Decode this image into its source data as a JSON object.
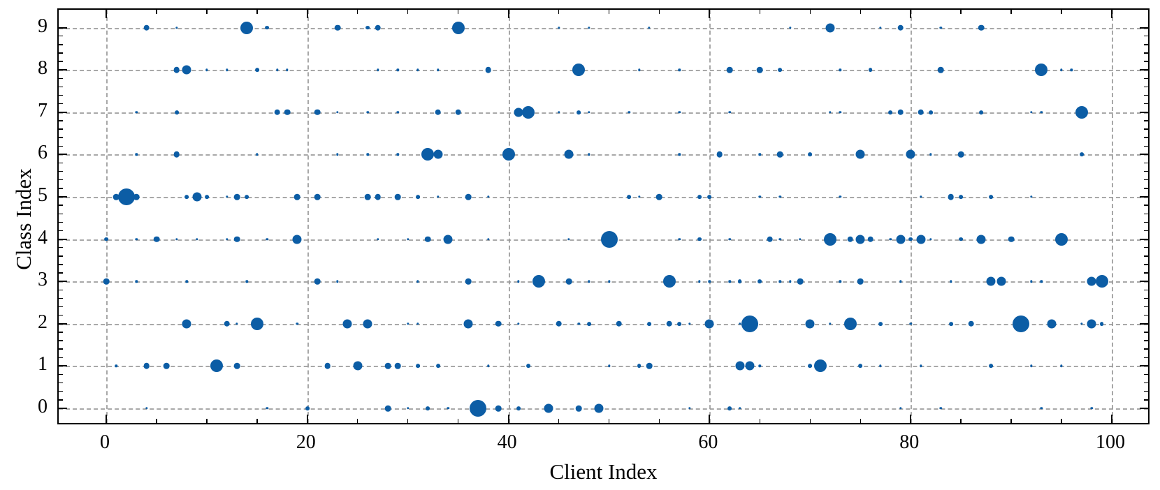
{
  "figure": {
    "xaxis_title": "Client Index",
    "yaxis_title": "Class Index"
  },
  "chart_data": {
    "type": "scatter",
    "subtype": "bubble",
    "title": "",
    "xlabel": "Client Index",
    "ylabel": "Class Index",
    "xlim": [
      -4.7,
      104
    ],
    "ylim": [
      -0.45,
      9.45
    ],
    "x_ticks": [
      0,
      20,
      40,
      60,
      80,
      100
    ],
    "y_ticks": [
      0,
      1,
      2,
      3,
      4,
      5,
      6,
      7,
      8,
      9
    ],
    "x_minor_step": 5,
    "y_minor_step": 0.2,
    "grid": "both, dashed gray",
    "legend": "none",
    "dot_color": "#0C5DA5",
    "grid_color": "#9a9a9a",
    "size_classes": {
      "1": "tiny",
      "2": "small",
      "3": "medium",
      "4": "large",
      "5": "xlarge",
      "6": "xxlarge"
    },
    "points_note": "each point = [client_index, class_index, size_class]; size encodes relative sample count",
    "points": [
      [
        4,
        9,
        3
      ],
      [
        7,
        9,
        1
      ],
      [
        14,
        9,
        5
      ],
      [
        16,
        9,
        2
      ],
      [
        23,
        9,
        3
      ],
      [
        26,
        9,
        2
      ],
      [
        27,
        9,
        3
      ],
      [
        35,
        9,
        5
      ],
      [
        45,
        9,
        1
      ],
      [
        48,
        9,
        1
      ],
      [
        54,
        9,
        1
      ],
      [
        68,
        9,
        1
      ],
      [
        72,
        9,
        4
      ],
      [
        77,
        9,
        1
      ],
      [
        79,
        9,
        3
      ],
      [
        83,
        9,
        1
      ],
      [
        87,
        9,
        3
      ],
      [
        7,
        8,
        3
      ],
      [
        8,
        8,
        4
      ],
      [
        10,
        8,
        1
      ],
      [
        12,
        8,
        1
      ],
      [
        15,
        8,
        2
      ],
      [
        17,
        8,
        1
      ],
      [
        18,
        8,
        1
      ],
      [
        27,
        8,
        1
      ],
      [
        29,
        8,
        1
      ],
      [
        31,
        8,
        1
      ],
      [
        33,
        8,
        1
      ],
      [
        38,
        8,
        3
      ],
      [
        47,
        8,
        5
      ],
      [
        53,
        8,
        1
      ],
      [
        57,
        8,
        1
      ],
      [
        62,
        8,
        3
      ],
      [
        65,
        8,
        3
      ],
      [
        67,
        8,
        2
      ],
      [
        73,
        8,
        1
      ],
      [
        76,
        8,
        2
      ],
      [
        83,
        8,
        3
      ],
      [
        93,
        8,
        5
      ],
      [
        95,
        8,
        1
      ],
      [
        96,
        8,
        1
      ],
      [
        3,
        7,
        1
      ],
      [
        7,
        7,
        2
      ],
      [
        17,
        7,
        3
      ],
      [
        18,
        7,
        3
      ],
      [
        21,
        7,
        3
      ],
      [
        23,
        7,
        1
      ],
      [
        26,
        7,
        1
      ],
      [
        29,
        7,
        1
      ],
      [
        33,
        7,
        3
      ],
      [
        35,
        7,
        3
      ],
      [
        41,
        7,
        4
      ],
      [
        42,
        7,
        5
      ],
      [
        45,
        7,
        1
      ],
      [
        47,
        7,
        2
      ],
      [
        48,
        7,
        1
      ],
      [
        52,
        7,
        1
      ],
      [
        57,
        7,
        1
      ],
      [
        62,
        7,
        1
      ],
      [
        72,
        7,
        1
      ],
      [
        73,
        7,
        1
      ],
      [
        78,
        7,
        2
      ],
      [
        79,
        7,
        3
      ],
      [
        81,
        7,
        3
      ],
      [
        82,
        7,
        2
      ],
      [
        87,
        7,
        2
      ],
      [
        92,
        7,
        1
      ],
      [
        93,
        7,
        1
      ],
      [
        97,
        7,
        5
      ],
      [
        3,
        6,
        1
      ],
      [
        7,
        6,
        3
      ],
      [
        15,
        6,
        1
      ],
      [
        23,
        6,
        1
      ],
      [
        26,
        6,
        1
      ],
      [
        29,
        6,
        1
      ],
      [
        32,
        6,
        5
      ],
      [
        33,
        6,
        4
      ],
      [
        40,
        6,
        5
      ],
      [
        46,
        6,
        4
      ],
      [
        48,
        6,
        1
      ],
      [
        57,
        6,
        1
      ],
      [
        61,
        6,
        3
      ],
      [
        65,
        6,
        1
      ],
      [
        67,
        6,
        3
      ],
      [
        70,
        6,
        2
      ],
      [
        75,
        6,
        4
      ],
      [
        80,
        6,
        4
      ],
      [
        82,
        6,
        1
      ],
      [
        85,
        6,
        3
      ],
      [
        97,
        6,
        2
      ],
      [
        1,
        5,
        3
      ],
      [
        2,
        5,
        6
      ],
      [
        3,
        5,
        3
      ],
      [
        8,
        5,
        2
      ],
      [
        9,
        5,
        4
      ],
      [
        10,
        5,
        2
      ],
      [
        12,
        5,
        1
      ],
      [
        13,
        5,
        3
      ],
      [
        14,
        5,
        2
      ],
      [
        19,
        5,
        3
      ],
      [
        21,
        5,
        3
      ],
      [
        26,
        5,
        3
      ],
      [
        27,
        5,
        3
      ],
      [
        29,
        5,
        3
      ],
      [
        31,
        5,
        2
      ],
      [
        33,
        5,
        1
      ],
      [
        36,
        5,
        3
      ],
      [
        38,
        5,
        1
      ],
      [
        52,
        5,
        2
      ],
      [
        53,
        5,
        1
      ],
      [
        55,
        5,
        3
      ],
      [
        59,
        5,
        2
      ],
      [
        60,
        5,
        2
      ],
      [
        65,
        5,
        1
      ],
      [
        67,
        5,
        1
      ],
      [
        73,
        5,
        1
      ],
      [
        81,
        5,
        1
      ],
      [
        84,
        5,
        3
      ],
      [
        85,
        5,
        2
      ],
      [
        88,
        5,
        2
      ],
      [
        92,
        5,
        1
      ],
      [
        0,
        4,
        2
      ],
      [
        3,
        4,
        1
      ],
      [
        5,
        4,
        3
      ],
      [
        7,
        4,
        1
      ],
      [
        9,
        4,
        1
      ],
      [
        12,
        4,
        1
      ],
      [
        13,
        4,
        3
      ],
      [
        16,
        4,
        1
      ],
      [
        19,
        4,
        4
      ],
      [
        27,
        4,
        1
      ],
      [
        30,
        4,
        1
      ],
      [
        32,
        4,
        3
      ],
      [
        34,
        4,
        4
      ],
      [
        38,
        4,
        1
      ],
      [
        46,
        4,
        1
      ],
      [
        50,
        4,
        6
      ],
      [
        57,
        4,
        1
      ],
      [
        59,
        4,
        2
      ],
      [
        62,
        4,
        1
      ],
      [
        66,
        4,
        3
      ],
      [
        67,
        4,
        1
      ],
      [
        69,
        4,
        1
      ],
      [
        72,
        4,
        5
      ],
      [
        74,
        4,
        3
      ],
      [
        75,
        4,
        4
      ],
      [
        76,
        4,
        3
      ],
      [
        78,
        4,
        1
      ],
      [
        79,
        4,
        4
      ],
      [
        80,
        4,
        2
      ],
      [
        81,
        4,
        4
      ],
      [
        82,
        4,
        1
      ],
      [
        85,
        4,
        2
      ],
      [
        87,
        4,
        4
      ],
      [
        90,
        4,
        3
      ],
      [
        95,
        4,
        5
      ],
      [
        0,
        3,
        3
      ],
      [
        3,
        3,
        1
      ],
      [
        8,
        3,
        1
      ],
      [
        14,
        3,
        1
      ],
      [
        21,
        3,
        3
      ],
      [
        23,
        3,
        1
      ],
      [
        31,
        3,
        1
      ],
      [
        36,
        3,
        3
      ],
      [
        41,
        3,
        1
      ],
      [
        43,
        3,
        5
      ],
      [
        46,
        3,
        3
      ],
      [
        48,
        3,
        1
      ],
      [
        50,
        3,
        1
      ],
      [
        56,
        3,
        5
      ],
      [
        59,
        3,
        1
      ],
      [
        60,
        3,
        1
      ],
      [
        62,
        3,
        1
      ],
      [
        63,
        3,
        2
      ],
      [
        65,
        3,
        2
      ],
      [
        67,
        3,
        1
      ],
      [
        68,
        3,
        1
      ],
      [
        69,
        3,
        3
      ],
      [
        73,
        3,
        1
      ],
      [
        75,
        3,
        3
      ],
      [
        79,
        3,
        1
      ],
      [
        84,
        3,
        1
      ],
      [
        88,
        3,
        4
      ],
      [
        89,
        3,
        4
      ],
      [
        92,
        3,
        1
      ],
      [
        93,
        3,
        1
      ],
      [
        98,
        3,
        4
      ],
      [
        99,
        3,
        5
      ],
      [
        8,
        2,
        4
      ],
      [
        12,
        2,
        3
      ],
      [
        13,
        2,
        1
      ],
      [
        15,
        2,
        5
      ],
      [
        19,
        2,
        1
      ],
      [
        24,
        2,
        4
      ],
      [
        26,
        2,
        4
      ],
      [
        30,
        2,
        1
      ],
      [
        31,
        2,
        1
      ],
      [
        36,
        2,
        4
      ],
      [
        39,
        2,
        3
      ],
      [
        41,
        2,
        1
      ],
      [
        45,
        2,
        3
      ],
      [
        47,
        2,
        1
      ],
      [
        48,
        2,
        2
      ],
      [
        51,
        2,
        3
      ],
      [
        54,
        2,
        2
      ],
      [
        56,
        2,
        3
      ],
      [
        57,
        2,
        2
      ],
      [
        58,
        2,
        1
      ],
      [
        60,
        2,
        4
      ],
      [
        63,
        2,
        1
      ],
      [
        64,
        2,
        6
      ],
      [
        70,
        2,
        4
      ],
      [
        72,
        2,
        1
      ],
      [
        74,
        2,
        5
      ],
      [
        77,
        2,
        2
      ],
      [
        80,
        2,
        1
      ],
      [
        84,
        2,
        2
      ],
      [
        86,
        2,
        3
      ],
      [
        91,
        2,
        6
      ],
      [
        94,
        2,
        4
      ],
      [
        97,
        2,
        1
      ],
      [
        98,
        2,
        4
      ],
      [
        99,
        2,
        2
      ],
      [
        1,
        1,
        1
      ],
      [
        4,
        1,
        3
      ],
      [
        6,
        1,
        3
      ],
      [
        11,
        1,
        5
      ],
      [
        13,
        1,
        3
      ],
      [
        22,
        1,
        3
      ],
      [
        25,
        1,
        4
      ],
      [
        28,
        1,
        3
      ],
      [
        29,
        1,
        3
      ],
      [
        31,
        1,
        2
      ],
      [
        33,
        1,
        2
      ],
      [
        38,
        1,
        1
      ],
      [
        42,
        1,
        2
      ],
      [
        50,
        1,
        1
      ],
      [
        53,
        1,
        2
      ],
      [
        54,
        1,
        3
      ],
      [
        63,
        1,
        4
      ],
      [
        64,
        1,
        4
      ],
      [
        65,
        1,
        1
      ],
      [
        70,
        1,
        2
      ],
      [
        71,
        1,
        5
      ],
      [
        75,
        1,
        2
      ],
      [
        77,
        1,
        1
      ],
      [
        81,
        1,
        1
      ],
      [
        88,
        1,
        2
      ],
      [
        92,
        1,
        1
      ],
      [
        95,
        1,
        1
      ],
      [
        4,
        0,
        1
      ],
      [
        16,
        0,
        1
      ],
      [
        20,
        0,
        2
      ],
      [
        28,
        0,
        3
      ],
      [
        30,
        0,
        1
      ],
      [
        32,
        0,
        2
      ],
      [
        34,
        0,
        1
      ],
      [
        37,
        0,
        6
      ],
      [
        39,
        0,
        3
      ],
      [
        41,
        0,
        2
      ],
      [
        44,
        0,
        4
      ],
      [
        47,
        0,
        3
      ],
      [
        49,
        0,
        4
      ],
      [
        58,
        0,
        1
      ],
      [
        62,
        0,
        2
      ],
      [
        63,
        0,
        1
      ],
      [
        79,
        0,
        1
      ],
      [
        83,
        0,
        1
      ],
      [
        93,
        0,
        1
      ],
      [
        98,
        0,
        1
      ]
    ]
  }
}
